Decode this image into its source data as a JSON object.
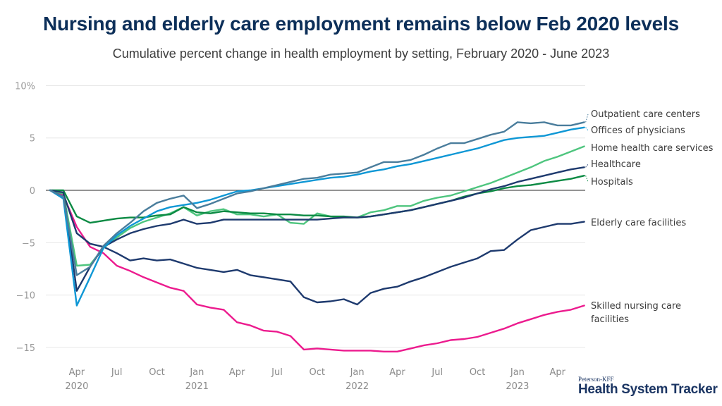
{
  "header": {
    "title": "Nursing and elderly care employment remains below Feb 2020 levels",
    "subtitle": "Cumulative percent change in health employment by setting, February 2020 - June 2023"
  },
  "logo": {
    "small": "Peterson-KFF",
    "big": "Health System Tracker"
  },
  "chart_data": {
    "type": "line",
    "title": "Nursing and elderly care employment remains below Feb 2020 levels",
    "subtitle": "Cumulative percent change in health employment by setting, February 2020 - June 2023",
    "xlabel": "",
    "ylabel": "",
    "x_start": "2020-02",
    "x_end": "2023-06",
    "ylim": [
      -17,
      10
    ],
    "yticks": [
      {
        "value": 10,
        "label": "10%"
      },
      {
        "value": 5,
        "label": "5"
      },
      {
        "value": 0,
        "label": "0"
      },
      {
        "value": -5,
        "label": "−5"
      },
      {
        "value": -10,
        "label": "−10"
      },
      {
        "value": -15,
        "label": "−15"
      }
    ],
    "xticks": [
      {
        "month_index": 2,
        "label": "Apr",
        "year": "2020"
      },
      {
        "month_index": 5,
        "label": "Jul",
        "year": ""
      },
      {
        "month_index": 8,
        "label": "Oct",
        "year": ""
      },
      {
        "month_index": 11,
        "label": "Jan",
        "year": "2021"
      },
      {
        "month_index": 14,
        "label": "Apr",
        "year": ""
      },
      {
        "month_index": 17,
        "label": "Jul",
        "year": ""
      },
      {
        "month_index": 20,
        "label": "Oct",
        "year": ""
      },
      {
        "month_index": 23,
        "label": "Jan",
        "year": "2022"
      },
      {
        "month_index": 26,
        "label": "Apr",
        "year": ""
      },
      {
        "month_index": 29,
        "label": "Jul",
        "year": ""
      },
      {
        "month_index": 32,
        "label": "Oct",
        "year": ""
      },
      {
        "month_index": 35,
        "label": "Jan",
        "year": "2023"
      },
      {
        "month_index": 38,
        "label": "Apr",
        "year": ""
      }
    ],
    "grid": true,
    "legend_placement": "right (direct labels)",
    "series": [
      {
        "name": "Outpatient care centers",
        "color": "#4a7d9c",
        "values": [
          0,
          -0.6,
          -8.1,
          -7.3,
          -5.3,
          -4.1,
          -3.1,
          -2.0,
          -1.2,
          -0.8,
          -0.5,
          -1.7,
          -1.3,
          -0.8,
          -0.3,
          -0.1,
          0.2,
          0.5,
          0.8,
          1.1,
          1.2,
          1.5,
          1.6,
          1.7,
          2.2,
          2.7,
          2.7,
          2.9,
          3.4,
          4.0,
          4.5,
          4.5,
          4.9,
          5.3,
          5.6,
          6.5,
          6.4,
          6.5,
          6.2,
          6.2,
          6.5
        ]
      },
      {
        "name": "Offices of physicians",
        "color": "#0e97d5",
        "values": [
          0,
          -0.8,
          -11.0,
          -8.3,
          -5.5,
          -4.3,
          -3.4,
          -2.7,
          -2.0,
          -1.6,
          -1.4,
          -1.2,
          -0.9,
          -0.5,
          -0.1,
          0.0,
          0.2,
          0.4,
          0.6,
          0.8,
          1.0,
          1.2,
          1.3,
          1.5,
          1.8,
          2.0,
          2.3,
          2.5,
          2.8,
          3.1,
          3.4,
          3.7,
          4.0,
          4.4,
          4.8,
          5.0,
          5.1,
          5.2,
          5.5,
          5.8,
          6.0
        ]
      },
      {
        "name": "Home health care services",
        "color": "#4ec57e",
        "values": [
          0,
          -0.3,
          -7.2,
          -7.1,
          -5.5,
          -4.5,
          -3.6,
          -3.0,
          -2.6,
          -2.2,
          -1.6,
          -2.4,
          -2.0,
          -1.8,
          -2.3,
          -2.3,
          -2.5,
          -2.3,
          -3.1,
          -3.2,
          -2.2,
          -2.5,
          -2.6,
          -2.6,
          -2.1,
          -1.9,
          -1.5,
          -1.5,
          -1.0,
          -0.7,
          -0.5,
          -0.1,
          0.3,
          0.7,
          1.2,
          1.7,
          2.2,
          2.8,
          3.2,
          3.7,
          4.2
        ]
      },
      {
        "name": "Healthcare",
        "color": "#1e3a6e",
        "values": [
          0,
          -0.2,
          -9.6,
          -7.3,
          -5.4,
          -4.7,
          -4.1,
          -3.7,
          -3.4,
          -3.2,
          -2.8,
          -3.2,
          -3.1,
          -2.8,
          -2.8,
          -2.8,
          -2.8,
          -2.8,
          -2.8,
          -2.8,
          -2.8,
          -2.7,
          -2.6,
          -2.6,
          -2.5,
          -2.3,
          -2.1,
          -1.9,
          -1.6,
          -1.3,
          -1.0,
          -0.7,
          -0.3,
          0.1,
          0.4,
          0.8,
          1.1,
          1.4,
          1.7,
          2.0,
          2.2
        ]
      },
      {
        "name": "Hospitals",
        "color": "#0b8a43",
        "values": [
          0,
          0,
          -2.5,
          -3.1,
          -2.9,
          -2.7,
          -2.6,
          -2.6,
          -2.4,
          -2.3,
          -1.6,
          -2.1,
          -2.2,
          -2.0,
          -2.1,
          -2.2,
          -2.2,
          -2.3,
          -2.3,
          -2.4,
          -2.4,
          -2.5,
          -2.5,
          -2.6,
          -2.5,
          -2.3,
          -2.1,
          -1.9,
          -1.6,
          -1.3,
          -1.0,
          -0.6,
          -0.3,
          -0.1,
          0.2,
          0.4,
          0.5,
          0.7,
          0.9,
          1.1,
          1.4
        ]
      },
      {
        "name": "Elderly care facilities",
        "color": "#1e3a6e",
        "values": [
          0,
          -0.3,
          -4.1,
          -5.1,
          -5.4,
          -6.0,
          -6.7,
          -6.5,
          -6.7,
          -6.6,
          -7.0,
          -7.4,
          -7.6,
          -7.8,
          -7.6,
          -8.1,
          -8.3,
          -8.5,
          -8.7,
          -10.2,
          -10.7,
          -10.6,
          -10.4,
          -10.9,
          -9.8,
          -9.4,
          -9.2,
          -8.7,
          -8.3,
          -7.8,
          -7.3,
          -6.9,
          -6.5,
          -5.8,
          -5.7,
          -4.7,
          -3.8,
          -3.5,
          -3.2,
          -3.2,
          -3.0
        ]
      },
      {
        "name": "Skilled nursing care facilities",
        "color": "#ec1b8e",
        "values": [
          0,
          -0.5,
          -3.5,
          -5.4,
          -6.0,
          -7.2,
          -7.7,
          -8.3,
          -8.8,
          -9.3,
          -9.6,
          -10.9,
          -11.2,
          -11.4,
          -12.6,
          -12.9,
          -13.4,
          -13.5,
          -13.9,
          -15.2,
          -15.1,
          -15.2,
          -15.3,
          -15.3,
          -15.3,
          -15.4,
          -15.4,
          -15.1,
          -14.8,
          -14.6,
          -14.3,
          -14.2,
          -14.0,
          -13.6,
          -13.2,
          -12.7,
          -12.3,
          -11.9,
          -11.6,
          -11.4,
          -11.0
        ]
      }
    ],
    "labels": [
      {
        "series_index": 0,
        "text": "Outpatient care centers"
      },
      {
        "series_index": 1,
        "text": "Offices of physicians"
      },
      {
        "series_index": 2,
        "text": "Home health care services"
      },
      {
        "series_index": 3,
        "text": "Healthcare"
      },
      {
        "series_index": 4,
        "text": "Hospitals"
      },
      {
        "series_index": 5,
        "text": "Elderly care facilities"
      },
      {
        "series_index": 6,
        "text": "Skilled nursing care",
        "text2": "facilities"
      }
    ]
  }
}
